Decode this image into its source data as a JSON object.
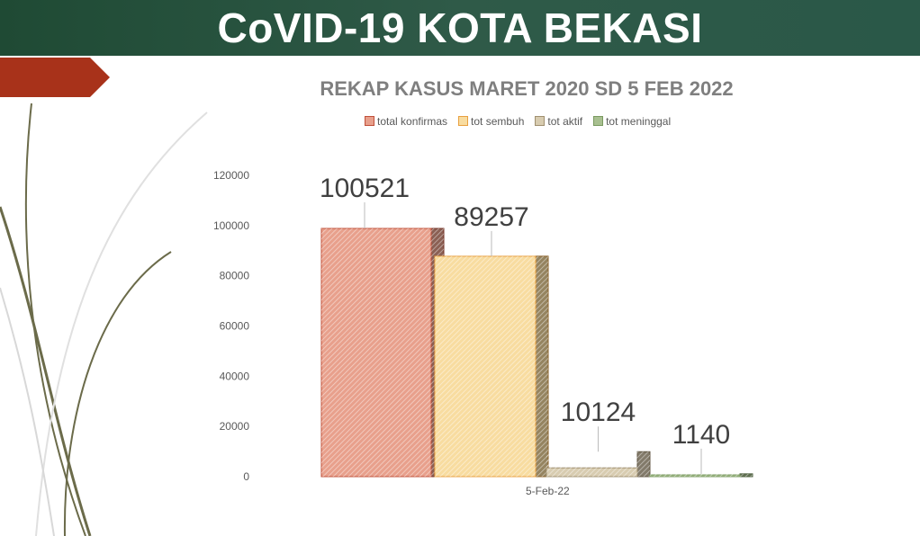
{
  "header": {
    "title": "CoVID-19 KOTA BEKASI"
  },
  "chart_data": {
    "type": "bar",
    "title": "REKAP KASUS MARET 2020 SD 5 FEB 2022",
    "categories": [
      "5-Feb-22"
    ],
    "series": [
      {
        "name": "total konfirmas",
        "values": [
          100521
        ],
        "color": "#e8a08c"
      },
      {
        "name": "tot sembuh",
        "values": [
          89257
        ],
        "color": "#f8dca0"
      },
      {
        "name": "tot aktif",
        "values": [
          10124
        ],
        "color": "#d8ccb0"
      },
      {
        "name": "tot meninggal",
        "values": [
          1140
        ],
        "color": "#a8c090"
      }
    ],
    "yticks": [
      0,
      20000,
      40000,
      60000,
      80000,
      100000,
      120000
    ],
    "ylim": [
      0,
      120000
    ],
    "data_labels": true,
    "legend": "top",
    "grid": false,
    "style": "3d-column"
  }
}
